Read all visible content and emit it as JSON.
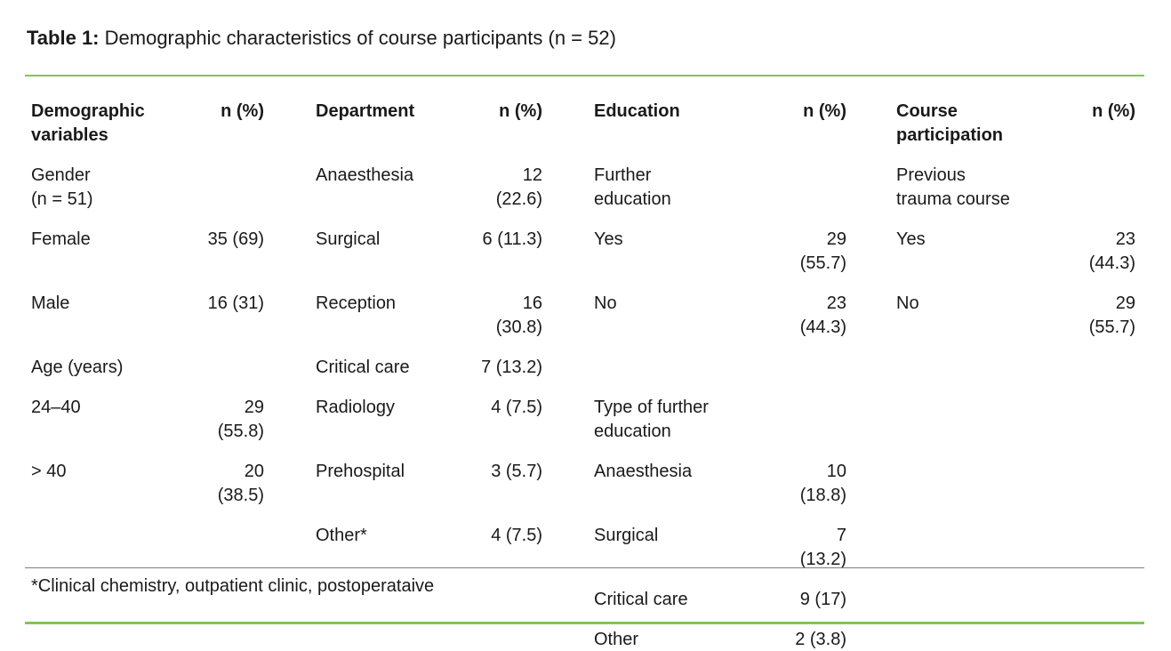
{
  "title": {
    "prefix": "Table 1:",
    "text": " Demographic characteristics of course participants (n = 52)"
  },
  "footnote": "*Clinical chemistry, outpatient clinic, postoperataive",
  "colors": {
    "accent_green": "#7dc855",
    "divider_gray": "#7f7f7f",
    "text": "#1a1a1a"
  },
  "table": {
    "column_groups": [
      {
        "header": "Demographic\nvariables",
        "value_header": "n (%)"
      },
      {
        "header": "Department",
        "value_header": "n (%)"
      },
      {
        "header": "Education",
        "value_header": "n (%)"
      },
      {
        "header": "Course\nparticipation",
        "value_header": "n (%)"
      }
    ],
    "rows": [
      [
        {
          "label": "Gender\n(n = 51)",
          "bold": true,
          "value": ""
        },
        {
          "label": "Anaesthesia",
          "value": "12 (22.6)"
        },
        {
          "label": "Further\neducation",
          "bold": true,
          "value": ""
        },
        {
          "label": "Previous\ntrauma course",
          "bold": true,
          "value": ""
        }
      ],
      [
        {
          "label": "Female",
          "value": "35 (69)"
        },
        {
          "label": "Surgical",
          "value": "6 (11.3)"
        },
        {
          "label": "Yes",
          "value": "29 (55.7)"
        },
        {
          "label": "Yes",
          "value": "23 (44.3)"
        }
      ],
      [
        {
          "label": "Male",
          "value": "16 (31)"
        },
        {
          "label": "Reception",
          "value": "16 (30.8)"
        },
        {
          "label": "No",
          "value": "23 (44.3)"
        },
        {
          "label": "No",
          "value": "29 (55.7)"
        }
      ],
      [
        {
          "label": "Age (years)",
          "bold": true,
          "value": ""
        },
        {
          "label": "Critical care",
          "value": "7 (13.2)"
        },
        {
          "label": "",
          "value": ""
        },
        {
          "label": "",
          "value": ""
        }
      ],
      [
        {
          "label": "24–40",
          "value": "29 (55.8)"
        },
        {
          "label": "Radiology",
          "value": "4 (7.5)"
        },
        {
          "label": "Type of further\neducation",
          "bold": true,
          "value": ""
        },
        {
          "label": "",
          "value": ""
        }
      ],
      [
        {
          "label": "> 40",
          "value": "20 (38.5)"
        },
        {
          "label": "Prehospital",
          "value": "3 (5.7)"
        },
        {
          "label": "Anaesthesia",
          "value": "10 (18.8)"
        },
        {
          "label": "",
          "value": ""
        }
      ],
      [
        {
          "label": "",
          "value": ""
        },
        {
          "label": "Other*",
          "value": "4 (7.5)"
        },
        {
          "label": "Surgical",
          "value": "7 (13.2)"
        },
        {
          "label": "",
          "value": ""
        }
      ],
      [
        {
          "label": "",
          "value": ""
        },
        {
          "label": "",
          "value": ""
        },
        {
          "label": "Critical care",
          "value": "9 (17)"
        },
        {
          "label": "",
          "value": ""
        }
      ],
      [
        {
          "label": "",
          "value": ""
        },
        {
          "label": "",
          "value": ""
        },
        {
          "label": "Other",
          "value": "2 (3.8)"
        },
        {
          "label": "",
          "value": ""
        }
      ]
    ]
  }
}
